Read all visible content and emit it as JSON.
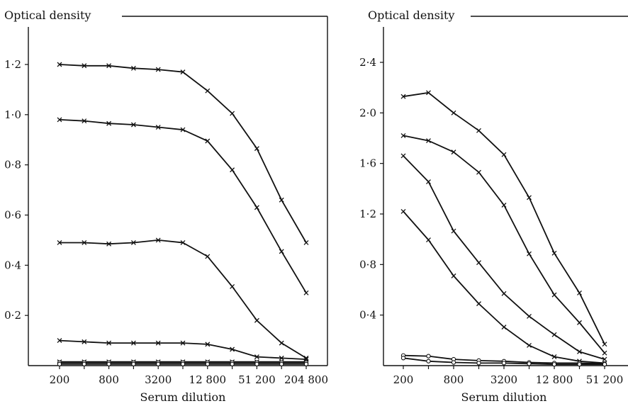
{
  "chart_data": [
    {
      "type": "line",
      "ylabel": "Optical density",
      "xlabel": "Serum dilution",
      "x_scale": "log2",
      "x": [
        200,
        400,
        800,
        1600,
        3200,
        6400,
        12800,
        25600,
        51200,
        102400,
        204800
      ],
      "xticks": [
        200,
        800,
        3200,
        12800,
        51200,
        204800
      ],
      "xtick_labels": [
        "200",
        "800",
        "3200",
        "12 800",
        "51 200",
        "204 800"
      ],
      "ylim": [
        0,
        1.3
      ],
      "yticks": [
        0.2,
        0.4,
        0.6,
        0.8,
        1.0,
        1.2
      ],
      "ytick_labels": [
        "0·2",
        "0·4",
        "0·6",
        "0·8",
        "1·0",
        "1·2"
      ],
      "grid": false,
      "series": [
        {
          "marker": "x",
          "values": [
            1.2,
            1.195,
            1.195,
            1.185,
            1.18,
            1.17,
            1.095,
            1.005,
            0.865,
            0.66,
            0.49
          ]
        },
        {
          "marker": "x",
          "values": [
            0.98,
            0.975,
            0.965,
            0.96,
            0.95,
            0.94,
            0.895,
            0.78,
            0.63,
            0.455,
            0.29
          ]
        },
        {
          "marker": "x",
          "values": [
            0.49,
            0.49,
            0.485,
            0.49,
            0.5,
            0.49,
            0.435,
            0.315,
            0.18,
            0.09,
            0.03
          ]
        },
        {
          "marker": "x",
          "values": [
            0.1,
            0.095,
            0.09,
            0.09,
            0.09,
            0.09,
            0.085,
            0.065,
            0.035,
            0.03,
            0.025
          ]
        },
        {
          "marker": "x",
          "values": [
            0.015,
            0.015,
            0.015,
            0.015,
            0.015,
            0.015,
            0.015,
            0.015,
            0.015,
            0.015,
            0.015
          ]
        },
        {
          "marker": "o",
          "values": [
            0.012,
            0.012,
            0.012,
            0.012,
            0.012,
            0.012,
            0.012,
            0.012,
            0.012,
            0.012,
            0.012
          ]
        },
        {
          "marker": "o",
          "values": [
            0.006,
            0.006,
            0.006,
            0.006,
            0.006,
            0.006,
            0.006,
            0.006,
            0.006,
            0.006,
            0.006
          ]
        }
      ]
    },
    {
      "type": "line",
      "ylabel": "Optical density",
      "xlabel": "Serum dilution",
      "x_scale": "log2",
      "x": [
        200,
        400,
        800,
        1600,
        3200,
        6400,
        12800,
        25600,
        51200
      ],
      "xticks": [
        200,
        800,
        3200,
        12800,
        51200
      ],
      "xtick_labels": [
        "200",
        "800",
        "3200",
        "12 800",
        "51 200"
      ],
      "ylim": [
        0,
        2.6
      ],
      "yticks": [
        0.4,
        0.8,
        1.2,
        1.6,
        2.0,
        2.4
      ],
      "ytick_labels": [
        "0·4",
        "0·8",
        "1·2",
        "1·6",
        "2·0",
        "2·4"
      ],
      "grid": false,
      "series": [
        {
          "marker": "x",
          "values": [
            2.13,
            2.16,
            2.0,
            1.86,
            1.67,
            1.33,
            0.89,
            0.575,
            0.17
          ]
        },
        {
          "marker": "x",
          "values": [
            1.82,
            1.78,
            1.69,
            1.53,
            1.27,
            0.885,
            0.56,
            0.34,
            0.1
          ]
        },
        {
          "marker": "x",
          "values": [
            1.66,
            1.455,
            1.065,
            0.815,
            0.57,
            0.39,
            0.245,
            0.11,
            0.05
          ]
        },
        {
          "marker": "x",
          "values": [
            1.22,
            0.995,
            0.71,
            0.49,
            0.305,
            0.16,
            0.07,
            0.035,
            0.02
          ]
        },
        {
          "marker": "o",
          "values": [
            0.08,
            0.075,
            0.05,
            0.04,
            0.035,
            0.025,
            0.02,
            0.02,
            0.015
          ]
        },
        {
          "marker": "o",
          "values": [
            0.06,
            0.035,
            0.025,
            0.02,
            0.02,
            0.015,
            0.01,
            0.01,
            0.01
          ]
        }
      ]
    }
  ]
}
